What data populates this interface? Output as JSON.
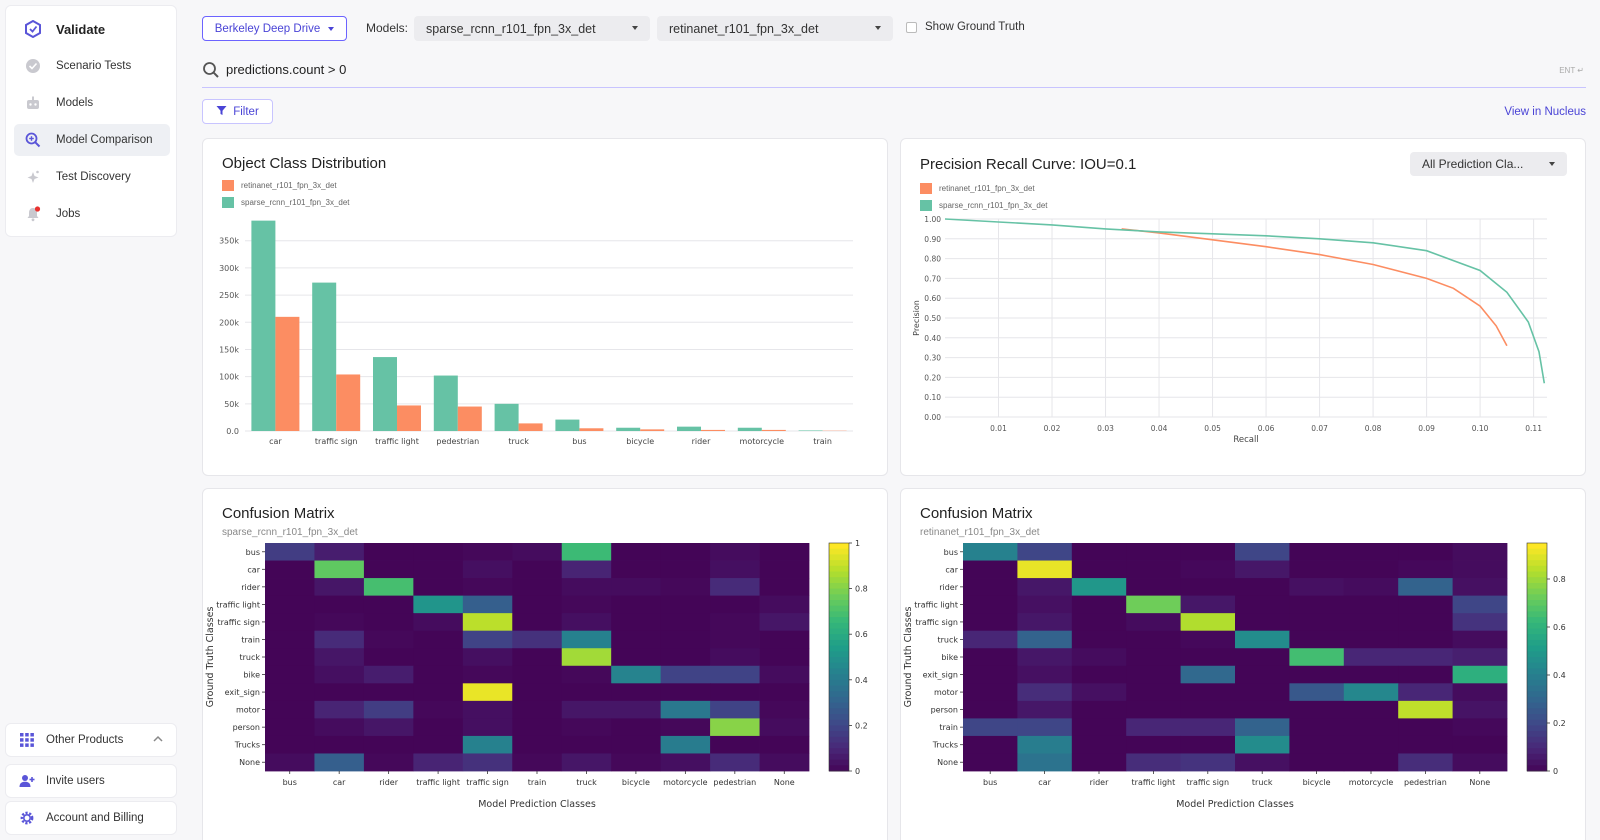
{
  "sidebar": {
    "brand": "Validate",
    "items": [
      {
        "label": "Scenario Tests",
        "icon": "check-circle-icon"
      },
      {
        "label": "Models",
        "icon": "robot-icon"
      },
      {
        "label": "Model Comparison",
        "icon": "magnify-compare-icon"
      },
      {
        "label": "Test Discovery",
        "icon": "sparkle-icon"
      },
      {
        "label": "Jobs",
        "icon": "bell-icon"
      }
    ],
    "other_products": "Other Products",
    "invite_users": "Invite users",
    "account_billing": "Account and Billing"
  },
  "toolbar": {
    "dataset": "Berkeley Deep Drive",
    "models_label": "Models:",
    "model_a": "sparse_rcnn_r101_fpn_3x_det",
    "model_b": "retinanet_r101_fpn_3x_det",
    "show_gt": "Show Ground Truth"
  },
  "search": {
    "query": "predictions.count > 0",
    "hint": "ENT ↵"
  },
  "filter_label": "Filter",
  "nucleus_link": "View in Nucleus",
  "colors": {
    "retinanet": "#fc8d62",
    "sparse": "#66c2a5",
    "accent": "#4a44d6"
  },
  "class_distribution": {
    "title": "Object Class Distribution",
    "legend": [
      "retinanet_r101_fpn_3x_det",
      "sparse_rcnn_r101_fpn_3x_det"
    ],
    "chart_data": {
      "type": "bar",
      "categories": [
        "car",
        "traffic sign",
        "traffic light",
        "pedestrian",
        "truck",
        "bus",
        "bicycle",
        "rider",
        "motorcycle",
        "train"
      ],
      "series": [
        {
          "name": "sparse_rcnn_r101_fpn_3x_det",
          "values": [
            387000,
            273000,
            136000,
            102000,
            50000,
            21000,
            6000,
            8000,
            6000,
            1000
          ]
        },
        {
          "name": "retinanet_r101_fpn_3x_det",
          "values": [
            210000,
            104000,
            47000,
            45000,
            14000,
            5000,
            3000,
            2000,
            2000,
            500
          ]
        }
      ],
      "yticks": [
        "0.0",
        "50k",
        "100k",
        "150k",
        "200k",
        "250k",
        "300k",
        "350k"
      ],
      "ylim": [
        0,
        390000
      ]
    }
  },
  "pr_curve": {
    "title": "Precision Recall Curve: IOU=0.1",
    "dropdown": "All Prediction Cla...",
    "legend": [
      "retinanet_r101_fpn_3x_det",
      "sparse_rcnn_r101_fpn_3x_det"
    ],
    "chart_data": {
      "type": "line",
      "xlabel": "Recall",
      "ylabel": "Precision",
      "xticks": [
        "0.01",
        "0.02",
        "0.03",
        "0.04",
        "0.05",
        "0.06",
        "0.07",
        "0.08",
        "0.09",
        "0.10",
        "0.11"
      ],
      "yticks": [
        "0.00",
        "0.10",
        "0.20",
        "0.30",
        "0.40",
        "0.50",
        "0.60",
        "0.70",
        "0.80",
        "0.90",
        "1.00"
      ],
      "xlim": [
        0,
        0.1125
      ],
      "ylim": [
        0,
        1.0
      ],
      "series": [
        {
          "name": "retinanet_r101_fpn_3x_det",
          "x": [
            0.033,
            0.04,
            0.05,
            0.06,
            0.07,
            0.08,
            0.09,
            0.095,
            0.1,
            0.103,
            0.105
          ],
          "y": [
            0.95,
            0.93,
            0.895,
            0.86,
            0.82,
            0.77,
            0.7,
            0.65,
            0.56,
            0.46,
            0.36
          ]
        },
        {
          "name": "sparse_rcnn_r101_fpn_3x_det",
          "x": [
            0.0,
            0.01,
            0.02,
            0.03,
            0.04,
            0.05,
            0.06,
            0.07,
            0.08,
            0.09,
            0.1,
            0.105,
            0.109,
            0.111,
            0.112
          ],
          "y": [
            1.0,
            0.985,
            0.97,
            0.95,
            0.935,
            0.925,
            0.915,
            0.9,
            0.88,
            0.84,
            0.74,
            0.63,
            0.48,
            0.33,
            0.17
          ]
        }
      ]
    }
  },
  "confusion_left": {
    "title": "Confusion Matrix",
    "subtitle": "sparse_rcnn_r101_fpn_3x_det",
    "chart_data": {
      "type": "heatmap",
      "ylabel": "Ground Truth Classes",
      "xlabel": "Model Prediction Classes",
      "rows": [
        "bus",
        "car",
        "rider",
        "traffic light",
        "traffic sign",
        "train",
        "truck",
        "bike",
        "exit_sign",
        "motor",
        "person",
        "Trucks",
        "None"
      ],
      "cols": [
        "bus",
        "car",
        "rider",
        "traffic light",
        "traffic sign",
        "train",
        "truck",
        "bicycle",
        "motorcycle",
        "pedestrian",
        "None"
      ],
      "values": [
        [
          0.18,
          0.08,
          0.01,
          0.01,
          0.02,
          0.03,
          0.68,
          0.01,
          0.01,
          0.03,
          0.01
        ],
        [
          0.01,
          0.75,
          0.01,
          0.01,
          0.04,
          0.01,
          0.1,
          0.01,
          0.01,
          0.04,
          0.01
        ],
        [
          0.01,
          0.06,
          0.7,
          0.01,
          0.02,
          0.01,
          0.03,
          0.03,
          0.02,
          0.12,
          0.01
        ],
        [
          0.01,
          0.01,
          0.01,
          0.52,
          0.3,
          0.01,
          0.02,
          0.01,
          0.01,
          0.01,
          0.03
        ],
        [
          0.01,
          0.02,
          0.01,
          0.03,
          0.9,
          0.01,
          0.04,
          0.01,
          0.01,
          0.02,
          0.06
        ],
        [
          0.01,
          0.12,
          0.02,
          0.01,
          0.2,
          0.14,
          0.44,
          0.01,
          0.01,
          0.02,
          0.01
        ],
        [
          0.01,
          0.06,
          0.01,
          0.01,
          0.04,
          0.01,
          0.86,
          0.01,
          0.01,
          0.03,
          0.01
        ],
        [
          0.01,
          0.04,
          0.08,
          0.01,
          0.02,
          0.01,
          0.02,
          0.45,
          0.2,
          0.2,
          0.03
        ],
        [
          0.01,
          0.01,
          0.01,
          0.01,
          0.97,
          0.01,
          0.01,
          0.01,
          0.01,
          0.01,
          0.01
        ],
        [
          0.01,
          0.1,
          0.18,
          0.02,
          0.04,
          0.01,
          0.06,
          0.06,
          0.4,
          0.2,
          0.02
        ],
        [
          0.01,
          0.03,
          0.06,
          0.01,
          0.04,
          0.01,
          0.02,
          0.01,
          0.02,
          0.82,
          0.03
        ],
        [
          0.01,
          0.01,
          0.01,
          0.01,
          0.44,
          0.01,
          0.01,
          0.01,
          0.42,
          0.01,
          0.01
        ],
        [
          0.03,
          0.3,
          0.02,
          0.1,
          0.14,
          0.02,
          0.06,
          0.02,
          0.04,
          0.12,
          0.03
        ]
      ],
      "colorbar_ticks": [
        "0",
        "0.2",
        "0.4",
        "0.6",
        "0.8",
        "1"
      ],
      "vmax": 1.0
    }
  },
  "confusion_right": {
    "title": "Confusion Matrix",
    "subtitle": "retinanet_r101_fpn_3x_det",
    "chart_data": {
      "type": "heatmap",
      "ylabel": "Ground Truth Classes",
      "xlabel": "Model Prediction Classes",
      "rows": [
        "bus",
        "car",
        "rider",
        "traffic light",
        "traffic sign",
        "truck",
        "bike",
        "exit_sign",
        "motor",
        "person",
        "train",
        "Trucks",
        "None"
      ],
      "cols": [
        "bus",
        "car",
        "rider",
        "traffic light",
        "traffic sign",
        "truck",
        "bicycle",
        "motorcycle",
        "pedestrian",
        "None"
      ],
      "values": [
        [
          0.42,
          0.2,
          0.01,
          0.01,
          0.01,
          0.2,
          0.01,
          0.01,
          0.01,
          0.03
        ],
        [
          0.01,
          0.92,
          0.01,
          0.01,
          0.02,
          0.06,
          0.01,
          0.01,
          0.02,
          0.03
        ],
        [
          0.01,
          0.06,
          0.5,
          0.01,
          0.01,
          0.01,
          0.04,
          0.03,
          0.3,
          0.04
        ],
        [
          0.01,
          0.04,
          0.01,
          0.74,
          0.06,
          0.01,
          0.01,
          0.01,
          0.01,
          0.2
        ],
        [
          0.01,
          0.06,
          0.01,
          0.03,
          0.84,
          0.01,
          0.01,
          0.01,
          0.01,
          0.14
        ],
        [
          0.1,
          0.3,
          0.01,
          0.01,
          0.02,
          0.46,
          0.01,
          0.01,
          0.01,
          0.03
        ],
        [
          0.01,
          0.06,
          0.03,
          0.01,
          0.01,
          0.01,
          0.66,
          0.1,
          0.1,
          0.08
        ],
        [
          0.01,
          0.04,
          0.01,
          0.01,
          0.32,
          0.01,
          0.01,
          0.01,
          0.01,
          0.6
        ],
        [
          0.01,
          0.12,
          0.04,
          0.01,
          0.01,
          0.01,
          0.26,
          0.44,
          0.1,
          0.03
        ],
        [
          0.01,
          0.06,
          0.01,
          0.01,
          0.01,
          0.01,
          0.01,
          0.01,
          0.86,
          0.05
        ],
        [
          0.2,
          0.2,
          0.01,
          0.1,
          0.1,
          0.3,
          0.01,
          0.01,
          0.01,
          0.02
        ],
        [
          0.01,
          0.4,
          0.01,
          0.01,
          0.01,
          0.46,
          0.01,
          0.01,
          0.01,
          0.01
        ],
        [
          0.01,
          0.36,
          0.01,
          0.12,
          0.14,
          0.04,
          0.01,
          0.01,
          0.12,
          0.03
        ]
      ],
      "colorbar_ticks": [
        "0",
        "0.2",
        "0.4",
        "0.6",
        "0.8"
      ],
      "vmax": 0.95
    }
  }
}
